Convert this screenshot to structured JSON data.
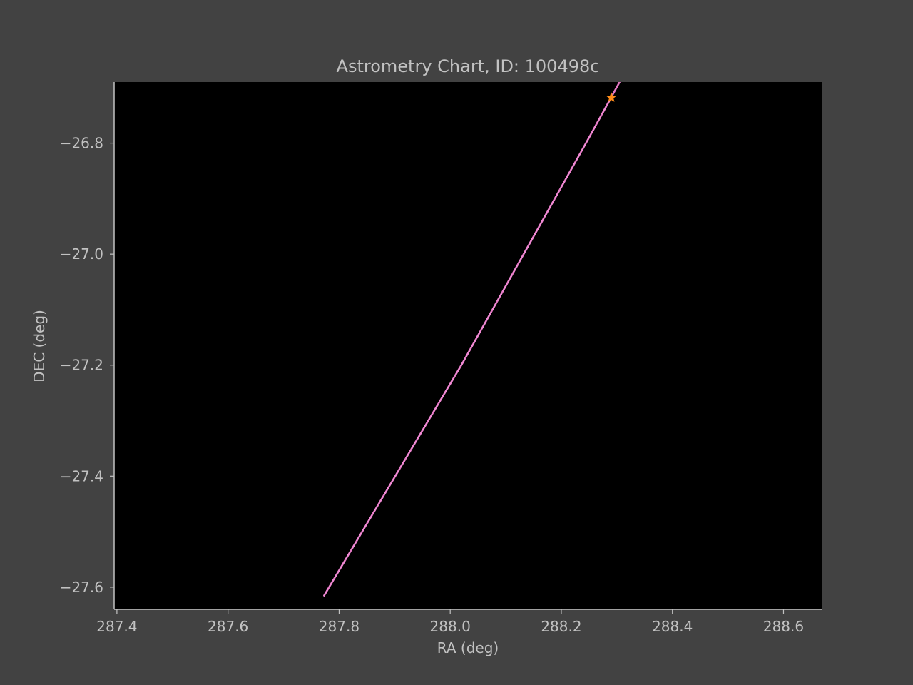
{
  "chart_data": {
    "type": "line",
    "title": "Astrometry Chart, ID: 100498c",
    "xlabel": "RA (deg)",
    "ylabel": "DEC (deg)",
    "xlim": [
      287.395,
      288.67
    ],
    "ylim": [
      -27.64,
      -26.69
    ],
    "grid": false,
    "x_ticks": [
      287.4,
      287.6,
      287.8,
      288.0,
      288.2,
      288.4,
      288.6
    ],
    "x_tick_labels": [
      "287.4",
      "287.6",
      "287.8",
      "288.0",
      "288.2",
      "288.4",
      "288.6"
    ],
    "y_ticks": [
      -26.8,
      -27.0,
      -27.2,
      -27.4,
      -27.6
    ],
    "y_tick_labels": [
      "−26.8",
      "−27.0",
      "−27.2",
      "−27.4",
      "−27.6"
    ],
    "series": [
      {
        "style": "solid",
        "color": "#e377c2",
        "x": [
          287.773,
          288.02,
          288.25,
          288.305
        ],
        "y": [
          -27.615,
          -27.2,
          -26.79,
          -26.69
        ]
      },
      {
        "style": "dashed",
        "color": "#e377c2",
        "x": [
          287.773,
          288.02,
          288.25,
          288.29
        ],
        "y": [
          -27.615,
          -27.2,
          -26.79,
          -26.718
        ]
      }
    ],
    "markers": [
      {
        "shape": "star",
        "color": "#ff8c1a",
        "x": 288.29,
        "y": -26.718
      }
    ]
  },
  "colors": {
    "figure_background": "#424242",
    "plot_background": "#000000",
    "text": "#c2c2c2",
    "axis": "#c2c2c2"
  }
}
